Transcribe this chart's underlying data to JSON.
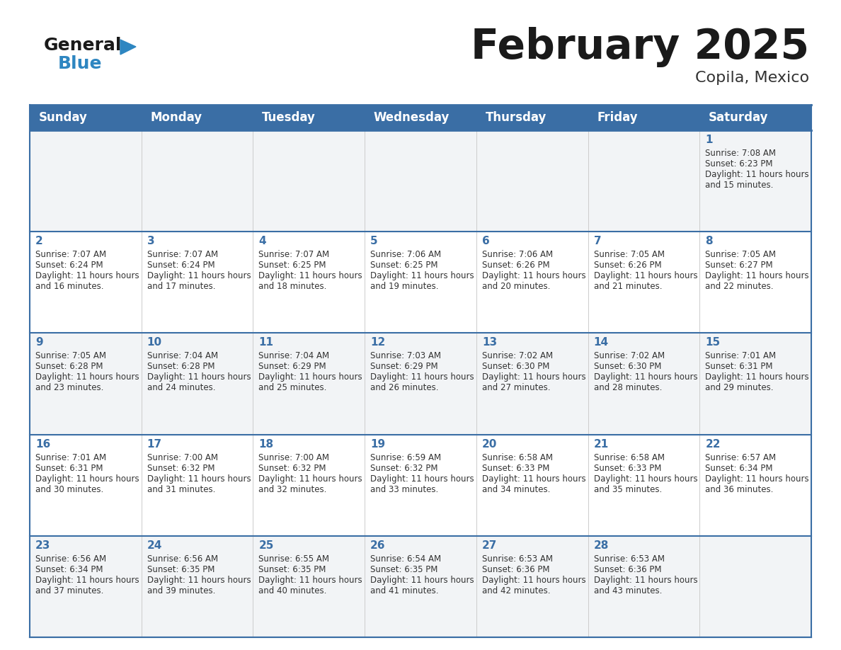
{
  "title": "February 2025",
  "subtitle": "Copila, Mexico",
  "header_bg_color": "#3a6ea5",
  "header_text_color": "#ffffff",
  "cell_bg_light": "#f2f4f6",
  "cell_bg_white": "#ffffff",
  "day_num_color": "#3a6ea5",
  "text_color": "#333333",
  "border_color": "#3a6ea5",
  "logo_black": "#1a1a1a",
  "logo_blue": "#2E86C1",
  "days_of_week": [
    "Sunday",
    "Monday",
    "Tuesday",
    "Wednesday",
    "Thursday",
    "Friday",
    "Saturday"
  ],
  "weeks": [
    [
      {
        "date": "",
        "sunrise": "",
        "sunset": "",
        "daylight": ""
      },
      {
        "date": "",
        "sunrise": "",
        "sunset": "",
        "daylight": ""
      },
      {
        "date": "",
        "sunrise": "",
        "sunset": "",
        "daylight": ""
      },
      {
        "date": "",
        "sunrise": "",
        "sunset": "",
        "daylight": ""
      },
      {
        "date": "",
        "sunrise": "",
        "sunset": "",
        "daylight": ""
      },
      {
        "date": "",
        "sunrise": "",
        "sunset": "",
        "daylight": ""
      },
      {
        "date": "1",
        "sunrise": "7:08 AM",
        "sunset": "6:23 PM",
        "daylight": "11 hours and 15 minutes."
      }
    ],
    [
      {
        "date": "2",
        "sunrise": "7:07 AM",
        "sunset": "6:24 PM",
        "daylight": "11 hours and 16 minutes."
      },
      {
        "date": "3",
        "sunrise": "7:07 AM",
        "sunset": "6:24 PM",
        "daylight": "11 hours and 17 minutes."
      },
      {
        "date": "4",
        "sunrise": "7:07 AM",
        "sunset": "6:25 PM",
        "daylight": "11 hours and 18 minutes."
      },
      {
        "date": "5",
        "sunrise": "7:06 AM",
        "sunset": "6:25 PM",
        "daylight": "11 hours and 19 minutes."
      },
      {
        "date": "6",
        "sunrise": "7:06 AM",
        "sunset": "6:26 PM",
        "daylight": "11 hours and 20 minutes."
      },
      {
        "date": "7",
        "sunrise": "7:05 AM",
        "sunset": "6:26 PM",
        "daylight": "11 hours and 21 minutes."
      },
      {
        "date": "8",
        "sunrise": "7:05 AM",
        "sunset": "6:27 PM",
        "daylight": "11 hours and 22 minutes."
      }
    ],
    [
      {
        "date": "9",
        "sunrise": "7:05 AM",
        "sunset": "6:28 PM",
        "daylight": "11 hours and 23 minutes."
      },
      {
        "date": "10",
        "sunrise": "7:04 AM",
        "sunset": "6:28 PM",
        "daylight": "11 hours and 24 minutes."
      },
      {
        "date": "11",
        "sunrise": "7:04 AM",
        "sunset": "6:29 PM",
        "daylight": "11 hours and 25 minutes."
      },
      {
        "date": "12",
        "sunrise": "7:03 AM",
        "sunset": "6:29 PM",
        "daylight": "11 hours and 26 minutes."
      },
      {
        "date": "13",
        "sunrise": "7:02 AM",
        "sunset": "6:30 PM",
        "daylight": "11 hours and 27 minutes."
      },
      {
        "date": "14",
        "sunrise": "7:02 AM",
        "sunset": "6:30 PM",
        "daylight": "11 hours and 28 minutes."
      },
      {
        "date": "15",
        "sunrise": "7:01 AM",
        "sunset": "6:31 PM",
        "daylight": "11 hours and 29 minutes."
      }
    ],
    [
      {
        "date": "16",
        "sunrise": "7:01 AM",
        "sunset": "6:31 PM",
        "daylight": "11 hours and 30 minutes."
      },
      {
        "date": "17",
        "sunrise": "7:00 AM",
        "sunset": "6:32 PM",
        "daylight": "11 hours and 31 minutes."
      },
      {
        "date": "18",
        "sunrise": "7:00 AM",
        "sunset": "6:32 PM",
        "daylight": "11 hours and 32 minutes."
      },
      {
        "date": "19",
        "sunrise": "6:59 AM",
        "sunset": "6:32 PM",
        "daylight": "11 hours and 33 minutes."
      },
      {
        "date": "20",
        "sunrise": "6:58 AM",
        "sunset": "6:33 PM",
        "daylight": "11 hours and 34 minutes."
      },
      {
        "date": "21",
        "sunrise": "6:58 AM",
        "sunset": "6:33 PM",
        "daylight": "11 hours and 35 minutes."
      },
      {
        "date": "22",
        "sunrise": "6:57 AM",
        "sunset": "6:34 PM",
        "daylight": "11 hours and 36 minutes."
      }
    ],
    [
      {
        "date": "23",
        "sunrise": "6:56 AM",
        "sunset": "6:34 PM",
        "daylight": "11 hours and 37 minutes."
      },
      {
        "date": "24",
        "sunrise": "6:56 AM",
        "sunset": "6:35 PM",
        "daylight": "11 hours and 39 minutes."
      },
      {
        "date": "25",
        "sunrise": "6:55 AM",
        "sunset": "6:35 PM",
        "daylight": "11 hours and 40 minutes."
      },
      {
        "date": "26",
        "sunrise": "6:54 AM",
        "sunset": "6:35 PM",
        "daylight": "11 hours and 41 minutes."
      },
      {
        "date": "27",
        "sunrise": "6:53 AM",
        "sunset": "6:36 PM",
        "daylight": "11 hours and 42 minutes."
      },
      {
        "date": "28",
        "sunrise": "6:53 AM",
        "sunset": "6:36 PM",
        "daylight": "11 hours and 43 minutes."
      },
      {
        "date": "",
        "sunrise": "",
        "sunset": "",
        "daylight": ""
      }
    ]
  ]
}
